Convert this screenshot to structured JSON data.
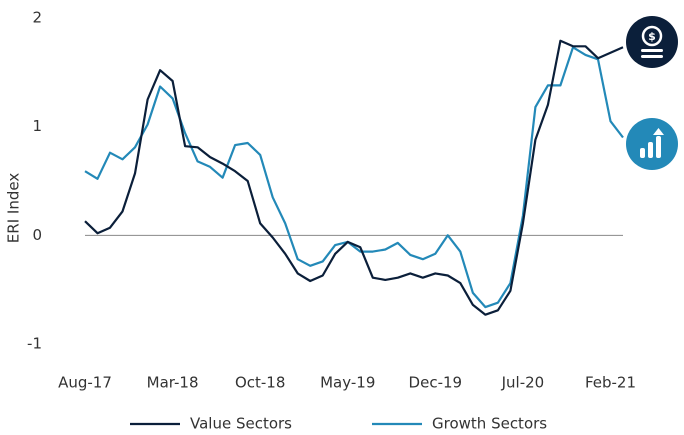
{
  "chart_data": {
    "type": "line",
    "ylabel": "ERI Index",
    "categories": [
      "Aug-17",
      null,
      null,
      null,
      null,
      null,
      null,
      "Mar-18",
      null,
      null,
      null,
      null,
      null,
      null,
      "Oct-18",
      null,
      null,
      null,
      null,
      null,
      null,
      "May-19",
      null,
      null,
      null,
      null,
      null,
      null,
      "Dec-19",
      null,
      null,
      null,
      null,
      null,
      null,
      "Jul-20",
      null,
      null,
      null,
      null,
      null,
      null,
      "Feb-21",
      null
    ],
    "series": [
      {
        "name": "Value Sectors",
        "color": "#0b1f3a",
        "values": [
          0.13,
          0.02,
          0.07,
          0.22,
          0.57,
          1.25,
          1.52,
          1.42,
          0.82,
          0.81,
          0.72,
          0.66,
          0.59,
          0.5,
          0.11,
          -0.02,
          -0.17,
          -0.35,
          -0.42,
          -0.37,
          -0.17,
          -0.06,
          -0.11,
          -0.39,
          -0.41,
          -0.39,
          -0.35,
          -0.39,
          -0.35,
          -0.37,
          -0.44,
          -0.64,
          -0.73,
          -0.69,
          -0.51,
          0.11,
          0.88,
          1.2,
          1.79,
          1.74,
          1.74,
          1.63,
          1.68,
          1.73
        ]
      },
      {
        "name": "Growth Sectors",
        "color": "#2389b8",
        "values": [
          0.59,
          0.52,
          0.76,
          0.7,
          0.81,
          1.02,
          1.37,
          1.26,
          0.94,
          0.68,
          0.63,
          0.53,
          0.83,
          0.85,
          0.74,
          0.35,
          0.11,
          -0.22,
          -0.28,
          -0.24,
          -0.09,
          -0.06,
          -0.15,
          -0.15,
          -0.13,
          -0.07,
          -0.18,
          -0.22,
          -0.17,
          0,
          -0.15,
          -0.53,
          -0.66,
          -0.62,
          -0.44,
          0.18,
          1.18,
          1.38,
          1.38,
          1.73,
          1.66,
          1.62,
          1.05,
          0.9
        ]
      }
    ],
    "ylim": [
      -1,
      2
    ],
    "yticks": [
      2,
      1,
      0,
      -1
    ]
  }
}
